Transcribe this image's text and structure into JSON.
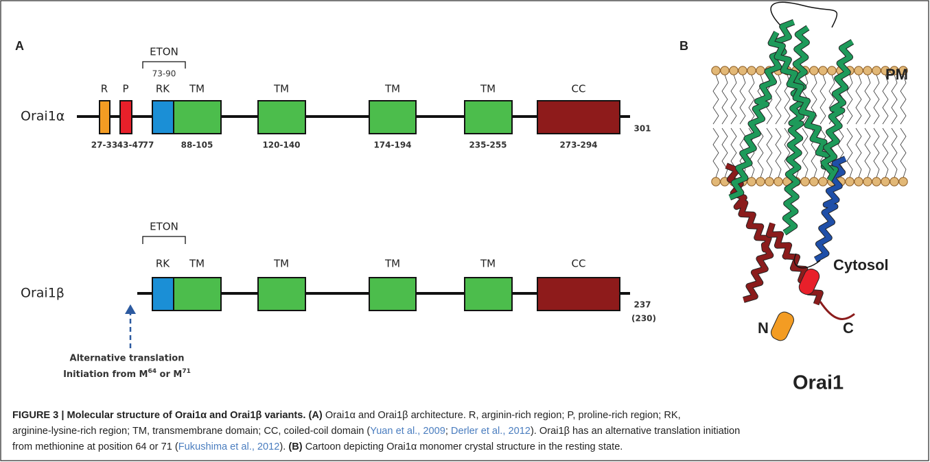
{
  "panel_a": {
    "label": "A",
    "orai1a": {
      "name": "Orai1α",
      "domains": [
        {
          "label": "R",
          "range": "27-33"
        },
        {
          "label": "P",
          "range": "43-47"
        },
        {
          "label": "RK",
          "range": "77"
        },
        {
          "label": "TM",
          "range": "88-105"
        },
        {
          "label": "TM",
          "range": "120-140"
        },
        {
          "label": "TM",
          "range": "174-194"
        },
        {
          "label": "TM",
          "range": "235-255"
        },
        {
          "label": "CC",
          "range": "273-294"
        }
      ],
      "end": "301",
      "eton": {
        "label": "ETON",
        "range": "73-90"
      }
    },
    "orai1b": {
      "name": "Orai1β",
      "domains": [
        "RK",
        "TM",
        "TM",
        "TM",
        "TM",
        "CC"
      ],
      "end": "237",
      "end_alt": "(230)",
      "eton": "ETON",
      "note": [
        "Alternative translation",
        [
          "Initiation from M",
          "64",
          " or M",
          "71"
        ]
      ]
    }
  },
  "panel_b": {
    "label": "B",
    "membrane": "PM",
    "compartment": "Cytosol",
    "n_term": "N",
    "c_term": "C",
    "protein": "Orai1"
  },
  "caption": {
    "lines": [
      [
        "FIGURE 3 | Molecular structure of Orai1α and Orai1β variants.",
        "(A)",
        " Orai1α and Orai1β architecture. R, arginin-rich region; P, proline-rich region; RK,"
      ],
      [
        "arginine-lysine-rich region; TM, transmembrane domain; CC, coiled-coil domain (",
        "Yuan et al., 2009",
        "; ",
        "Derler et al., 2012",
        "). Orai1β has an alternative translation initiation"
      ],
      [
        "from methionine at position 64 or 71 (",
        "Fukushima et al., 2012",
        "). ",
        "(B)",
        " Cartoon depicting Orai1α monomer crystal structure in the resting state."
      ]
    ]
  }
}
